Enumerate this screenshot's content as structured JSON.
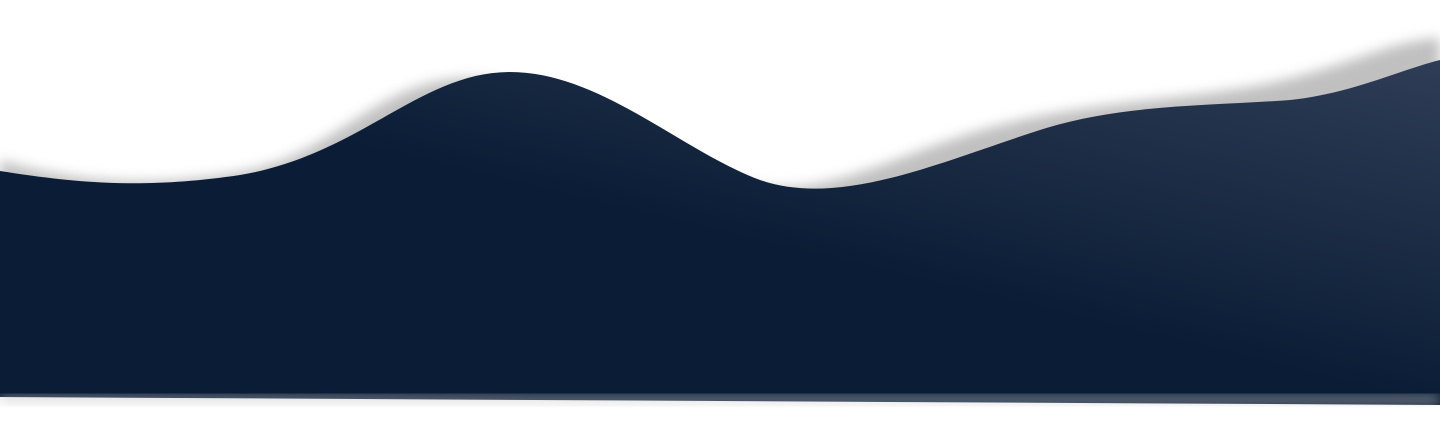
{
  "colors": {
    "background": "#ffffff",
    "wave_dark": "#0b1d36",
    "wave_mid": "#0f203b",
    "wave_light": "#2f3d56",
    "shadow": "#bdbdbd"
  }
}
